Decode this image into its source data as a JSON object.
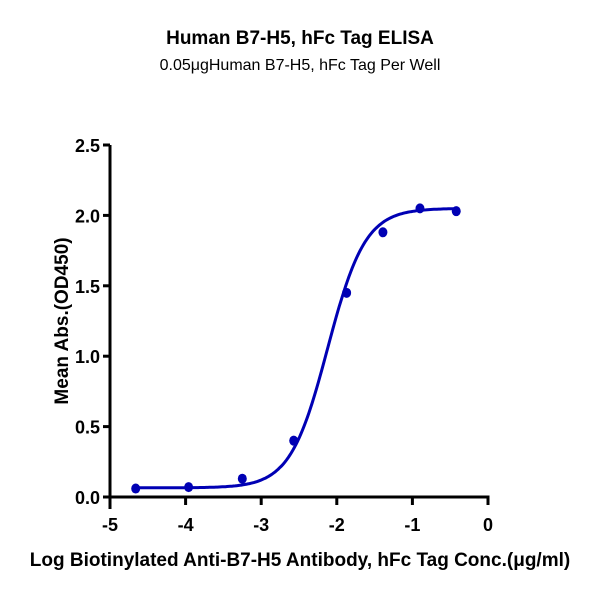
{
  "chart_data": {
    "type": "line",
    "title": "Human B7-H5, hFc Tag ELISA",
    "subtitle": "0.05μgHuman B7-H5, hFc Tag Per Well",
    "xlabel": "Log Biotinylated Anti-B7-H5 Antibody, hFc Tag Conc.(μg/ml)",
    "ylabel": "Mean Abs.(OD450)",
    "xlim": [
      -5,
      0
    ],
    "ylim": [
      0,
      2.5
    ],
    "x_ticks": [
      "-5",
      "-4",
      "-3",
      "-2",
      "-1",
      "0"
    ],
    "y_ticks": [
      "0.0",
      "0.5",
      "1.0",
      "1.5",
      "2.0",
      "2.5"
    ],
    "grid": false,
    "legend": null,
    "series": [
      {
        "name": "Human B7-H5, hFc Tag",
        "color": "#0000b4",
        "fit": "4PL sigmoidal",
        "points": [
          {
            "x": -4.66,
            "y": 0.06
          },
          {
            "x": -3.96,
            "y": 0.07
          },
          {
            "x": -3.25,
            "y": 0.13
          },
          {
            "x": -2.57,
            "y": 0.4
          },
          {
            "x": -1.87,
            "y": 1.45
          },
          {
            "x": -1.39,
            "y": 1.88
          },
          {
            "x": -0.9,
            "y": 2.05
          },
          {
            "x": -0.42,
            "y": 2.03
          }
        ]
      }
    ],
    "fit_params": {
      "bottom": 0.065,
      "top": 2.05,
      "logEC50": -2.12,
      "hill": 1.75
    }
  }
}
